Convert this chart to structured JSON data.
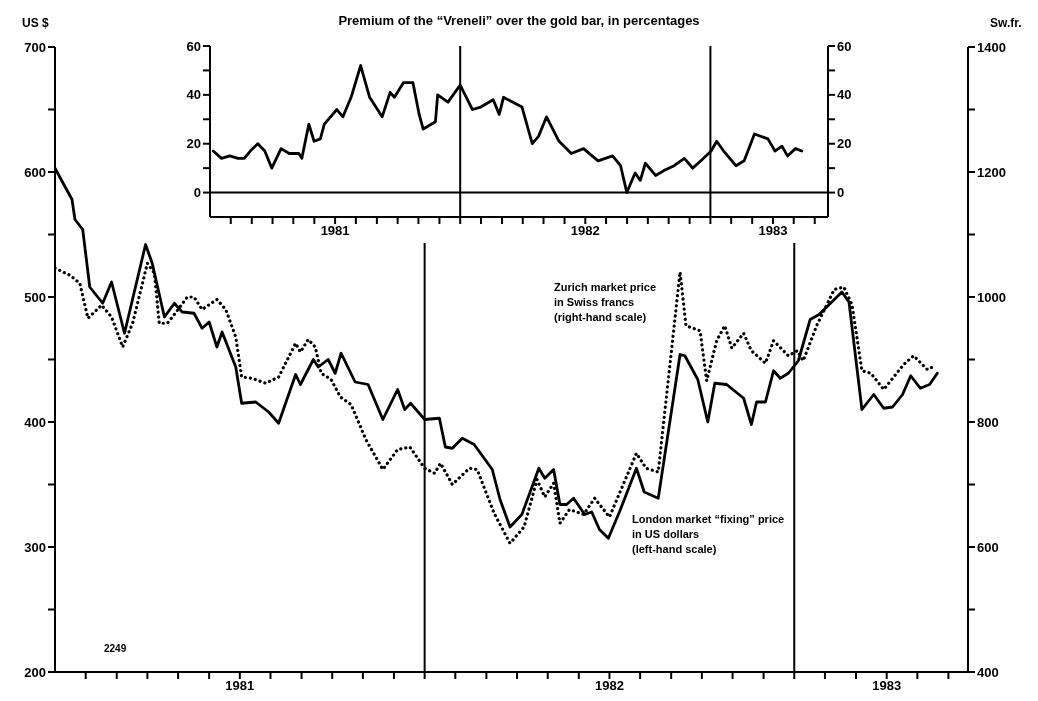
{
  "chart_data": [
    {
      "type": "line",
      "ylabel": "US $",
      "y2label": "Sw.fr.",
      "annotations": [
        "2249"
      ],
      "xlim": [
        1981,
        1983.47
      ],
      "ylim": [
        200,
        700
      ],
      "y2lim": [
        400,
        1400
      ],
      "xticks": [
        {
          "value": 1981.083,
          "label": null
        },
        {
          "value": 1981.167,
          "label": null
        },
        {
          "value": 1981.25,
          "label": null
        },
        {
          "value": 1981.333,
          "label": null
        },
        {
          "value": 1981.417,
          "label": null
        },
        {
          "value": 1981.5,
          "label": "1981"
        },
        {
          "value": 1981.583,
          "label": null
        },
        {
          "value": 1981.667,
          "label": null
        },
        {
          "value": 1981.75,
          "label": null
        },
        {
          "value": 1981.833,
          "label": null
        },
        {
          "value": 1981.917,
          "label": null
        },
        {
          "value": 1982,
          "label": null
        },
        {
          "value": 1982.083,
          "label": null
        },
        {
          "value": 1982.167,
          "label": null
        },
        {
          "value": 1982.25,
          "label": null
        },
        {
          "value": 1982.333,
          "label": null
        },
        {
          "value": 1982.417,
          "label": null
        },
        {
          "value": 1982.5,
          "label": "1982"
        },
        {
          "value": 1982.583,
          "label": null
        },
        {
          "value": 1982.667,
          "label": null
        },
        {
          "value": 1982.75,
          "label": null
        },
        {
          "value": 1982.833,
          "label": null
        },
        {
          "value": 1982.917,
          "label": null
        },
        {
          "value": 1983,
          "label": null
        },
        {
          "value": 1983.083,
          "label": null
        },
        {
          "value": 1983.167,
          "label": null
        },
        {
          "value": 1983.25,
          "label": "1983"
        },
        {
          "value": 1983.333,
          "label": null
        },
        {
          "value": 1983.417,
          "label": null
        }
      ],
      "yticks": [
        200,
        {
          "value": 250,
          "label": null
        },
        300,
        {
          "value": 350,
          "label": null
        },
        400,
        {
          "value": 450,
          "label": null
        },
        500,
        {
          "value": 550,
          "label": null
        },
        600,
        {
          "value": 650,
          "label": null
        },
        700
      ],
      "y2ticks": [
        400,
        {
          "value": 500,
          "label": null
        },
        600,
        {
          "value": 700,
          "label": null
        },
        800,
        {
          "value": 900,
          "label": null
        },
        1000,
        {
          "value": 1100,
          "label": null
        },
        1200,
        {
          "value": 1300,
          "label": null
        },
        1400
      ],
      "ref_lines": [
        {
          "axis": "x",
          "value": 1982,
          "color": "#000000"
        },
        {
          "axis": "x",
          "value": 1983,
          "color": "#000000"
        }
      ],
      "marker": "none",
      "series": [
        {
          "name": "London market “fixing” price\nin US dollars\n(left-hand scale)",
          "color": "#000000",
          "line_style": "solid",
          "axis": "y",
          "x": [
            1981.0,
            1981.046,
            1981.054,
            1981.075,
            1981.094,
            1981.129,
            1981.153,
            1981.188,
            1981.245,
            1981.263,
            1981.296,
            1981.323,
            1981.344,
            1981.376,
            1981.398,
            1981.417,
            1981.438,
            1981.452,
            1981.489,
            1981.505,
            1981.543,
            1981.578,
            1981.605,
            1981.651,
            1981.664,
            1981.699,
            1981.712,
            1981.739,
            1981.758,
            1981.774,
            1981.812,
            1981.847,
            1981.887,
            1981.927,
            1981.946,
            1981.962,
            1982.0,
            1982.04,
            1982.056,
            1982.075,
            1982.102,
            1982.134,
            1982.183,
            1982.204,
            1982.231,
            1982.263,
            1982.309,
            1982.325,
            1982.349,
            1982.366,
            1982.384,
            1982.403,
            1982.433,
            1982.452,
            1982.473,
            1982.497,
            1982.527,
            1982.573,
            1982.594,
            1982.632,
            1982.691,
            1982.704,
            1982.739,
            1982.766,
            1982.785,
            1982.817,
            1982.863,
            1982.884,
            1982.898,
            1982.922,
            1982.944,
            1982.962,
            1982.984,
            1983.011,
            1983.043,
            1983.067,
            1983.129,
            1983.148,
            1983.183,
            1983.215,
            1983.242,
            1983.266,
            1983.293,
            1983.315,
            1983.341,
            1983.366,
            1983.387
          ],
          "values": [
            603,
            578,
            562,
            554,
            508,
            495,
            512,
            471,
            542,
            527,
            484,
            495,
            488,
            487,
            475,
            480,
            460,
            472,
            444,
            415,
            416,
            408,
            399,
            438,
            430,
            450,
            444,
            450,
            439,
            455,
            432,
            430,
            402,
            426,
            410,
            415,
            402,
            403,
            380,
            379,
            387,
            382,
            362,
            338,
            316,
            326,
            363,
            355,
            362,
            334,
            334,
            339,
            326,
            328,
            314,
            307,
            328,
            363,
            344,
            339,
            454,
            453,
            434,
            400,
            431,
            430,
            419,
            398,
            416,
            416,
            441,
            435,
            439,
            449,
            482,
            486,
            504,
            496,
            410,
            422,
            411,
            412,
            422,
            437,
            427,
            430,
            439
          ]
        },
        {
          "name": "Zurich market price\nin Swiss francs\n(right-hand scale)",
          "color": "#000000",
          "line_style": "dotted",
          "axis": "y2",
          "x": [
            1981.0,
            1981.04,
            1981.067,
            1981.089,
            1981.126,
            1981.153,
            1981.183,
            1981.21,
            1981.25,
            1981.269,
            1981.282,
            1981.304,
            1981.328,
            1981.358,
            1981.376,
            1981.398,
            1981.438,
            1981.462,
            1981.489,
            1981.505,
            1981.532,
            1981.57,
            1981.605,
            1981.651,
            1981.664,
            1981.685,
            1981.704,
            1981.72,
            1981.747,
            1981.772,
            1981.801,
            1981.841,
            1981.887,
            1981.927,
            1981.96,
            1982.0,
            1982.027,
            1982.043,
            1982.075,
            1982.121,
            1982.142,
            1982.188,
            1982.231,
            1982.269,
            1982.304,
            1982.325,
            1982.349,
            1982.366,
            1982.392,
            1982.43,
            1982.46,
            1982.5,
            1982.573,
            1982.599,
            1982.632,
            1982.691,
            1982.707,
            1982.745,
            1982.763,
            1982.79,
            1982.812,
            1982.831,
            1982.863,
            1982.884,
            1982.922,
            1982.944,
            1982.984,
            1983.008,
            1983.024,
            1983.062,
            1983.108,
            1983.134,
            1983.156,
            1983.183,
            1983.207,
            1983.242,
            1983.296,
            1983.323,
            1983.36,
            1983.382
          ],
          "values": [
            1046,
            1035,
            1022,
            966,
            987,
            968,
            920,
            958,
            1054,
            1038,
            958,
            958,
            976,
            1000,
            1000,
            980,
            996,
            980,
            936,
            872,
            870,
            862,
            872,
            926,
            912,
            932,
            920,
            878,
            868,
            840,
            828,
            772,
            724,
            756,
            760,
            726,
            718,
            734,
            700,
            726,
            724,
            654,
            606,
            632,
            708,
            680,
            702,
            638,
            660,
            652,
            678,
            648,
            750,
            726,
            720,
            1040,
            954,
            946,
            866,
            930,
            954,
            918,
            942,
            914,
            894,
            930,
            906,
            914,
            898,
            956,
            1012,
            1016,
            988,
            882,
            878,
            852,
            892,
            906,
            884,
            890
          ]
        }
      ]
    },
    {
      "type": "line",
      "title": "Premium of the “Vreneli” over the gold bar, in percentages",
      "xlim": [
        1981,
        1983.47
      ],
      "ylim": [
        -10,
        60
      ],
      "y2lim": [
        -10,
        60
      ],
      "xticks": [
        {
          "value": 1981.083,
          "label": null
        },
        {
          "value": 1981.167,
          "label": null
        },
        {
          "value": 1981.25,
          "label": null
        },
        {
          "value": 1981.333,
          "label": null
        },
        {
          "value": 1981.417,
          "label": null
        },
        {
          "value": 1981.5,
          "label": "1981"
        },
        {
          "value": 1981.583,
          "label": null
        },
        {
          "value": 1981.667,
          "label": null
        },
        {
          "value": 1981.75,
          "label": null
        },
        {
          "value": 1981.833,
          "label": null
        },
        {
          "value": 1981.917,
          "label": null
        },
        {
          "value": 1982,
          "label": null
        },
        {
          "value": 1982.083,
          "label": null
        },
        {
          "value": 1982.167,
          "label": null
        },
        {
          "value": 1982.25,
          "label": null
        },
        {
          "value": 1982.333,
          "label": null
        },
        {
          "value": 1982.417,
          "label": null
        },
        {
          "value": 1982.5,
          "label": "1982"
        },
        {
          "value": 1982.583,
          "label": null
        },
        {
          "value": 1982.667,
          "label": null
        },
        {
          "value": 1982.75,
          "label": null
        },
        {
          "value": 1982.833,
          "label": null
        },
        {
          "value": 1982.917,
          "label": null
        },
        {
          "value": 1983,
          "label": null
        },
        {
          "value": 1983.083,
          "label": null
        },
        {
          "value": 1983.167,
          "label": null
        },
        {
          "value": 1983.25,
          "label": "1983"
        },
        {
          "value": 1983.333,
          "label": null
        },
        {
          "value": 1983.417,
          "label": null
        }
      ],
      "yticks": [
        0,
        {
          "value": 10,
          "label": null
        },
        20,
        {
          "value": 30,
          "label": null
        },
        40,
        {
          "value": 50,
          "label": null
        },
        60
      ],
      "y2ticks": [
        0,
        {
          "value": 10,
          "label": null
        },
        20,
        {
          "value": 30,
          "label": null
        },
        40,
        {
          "value": 50,
          "label": null
        },
        60
      ],
      "ref_lines": [
        {
          "axis": "x",
          "value": 1982,
          "color": "#000000"
        },
        {
          "axis": "x",
          "value": 1983,
          "color": "#000000"
        },
        {
          "axis": "y",
          "value": 0,
          "color": "#000000"
        }
      ],
      "marker": "none",
      "series": [
        {
          "color": "#000000",
          "line_style": "solid",
          "axis": "y",
          "x": [
            1981.013,
            1981.046,
            1981.079,
            1981.112,
            1981.137,
            1981.161,
            1981.191,
            1981.219,
            1981.247,
            1981.284,
            1981.317,
            1981.355,
            1981.367,
            1981.395,
            1981.416,
            1981.441,
            1981.457,
            1981.507,
            1981.531,
            1981.564,
            1981.602,
            1981.638,
            1981.688,
            1981.72,
            1981.737,
            1981.773,
            1981.811,
            1981.836,
            1981.852,
            1981.901,
            1981.91,
            1981.951,
            1982.0,
            1982.049,
            1982.082,
            1982.132,
            1982.156,
            1982.173,
            1982.247,
            1982.288,
            1982.313,
            1982.345,
            1982.395,
            1982.444,
            1982.493,
            1982.551,
            1982.609,
            1982.641,
            1982.666,
            1982.699,
            1982.72,
            1982.74,
            1982.781,
            1982.814,
            1982.855,
            1982.896,
            1982.929,
            1982.962,
            1983.003,
            1983.025,
            1983.053,
            1983.102,
            1983.135,
            1983.176,
            1983.23,
            1983.258,
            1983.286,
            1983.308,
            1983.34,
            1983.365
          ],
          "values": [
            17,
            14,
            15,
            14,
            14,
            17,
            20,
            17,
            10,
            18,
            16,
            16,
            14,
            28,
            21,
            22,
            28,
            34,
            31,
            39,
            52,
            39,
            31,
            41,
            39,
            45,
            45,
            32,
            26,
            29,
            40,
            37,
            44,
            34,
            35,
            38,
            32,
            39,
            35,
            20,
            23,
            31,
            21,
            16,
            18,
            13,
            15,
            11,
            0,
            8,
            5,
            12,
            7,
            9,
            11,
            14,
            10,
            13,
            17,
            21,
            17,
            11,
            13,
            24,
            22,
            17,
            19,
            15,
            18,
            17
          ]
        }
      ]
    }
  ]
}
